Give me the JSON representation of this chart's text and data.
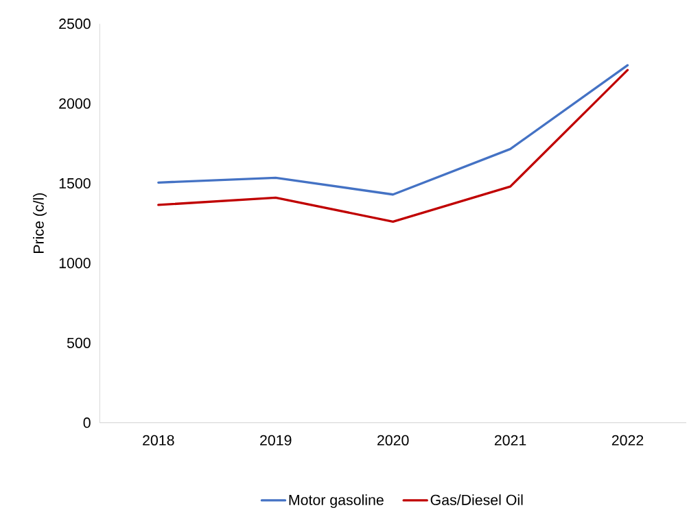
{
  "chart_data": {
    "type": "line",
    "ylabel": "Price (c/l)",
    "categories": [
      "2018",
      "2019",
      "2020",
      "2021",
      "2022"
    ],
    "series": [
      {
        "name": "Motor gasoline",
        "color": "#4472c4",
        "values": [
          1505,
          1535,
          1430,
          1715,
          2240
        ]
      },
      {
        "name": "Gas/Diesel Oil",
        "color": "#c00000",
        "values": [
          1365,
          1410,
          1260,
          1480,
          2210
        ]
      }
    ],
    "ylim": [
      0,
      2500
    ],
    "yticks": [
      0,
      500,
      1000,
      1500,
      2000,
      2500
    ],
    "grid": false,
    "legend": "bottom",
    "marker": "none",
    "line_style": "solid"
  }
}
